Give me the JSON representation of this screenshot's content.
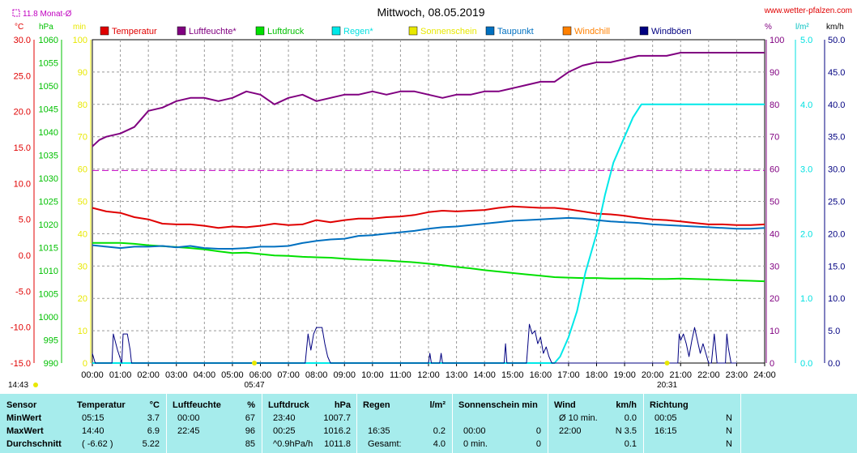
{
  "header": {
    "title": "Mittwoch, 08.05.2019",
    "site": "www.wetter-pfalzen.com",
    "month_avg_label": "11.8 Monat-Ø",
    "unit_c": "°C",
    "unit_hpa": "hPa",
    "unit_min": "min",
    "unit_pct": "%",
    "unit_lm2": "l/m²",
    "unit_kmh": "km/h",
    "sunrise": "05:47",
    "sunset": "20:31",
    "now": "14:43"
  },
  "colors": {
    "temperature": "#e00000",
    "humidity": "#800080",
    "pressure": "#00e000",
    "rain": "#00e8e8",
    "sunshine": "#e8e800",
    "dewpoint": "#0070c0",
    "windchill": "#ff8000",
    "gusts": "#000080",
    "table_bg": "#a6ecec"
  },
  "chart_data": {
    "type": "line",
    "title": "Mittwoch, 08.05.2019",
    "x_ticks": [
      "00:00",
      "01:00",
      "02:00",
      "03:00",
      "04:00",
      "05:00",
      "06:00",
      "07:00",
      "08:00",
      "09:00",
      "10:00",
      "11:00",
      "12:00",
      "13:00",
      "14:00",
      "15:00",
      "16:00",
      "17:00",
      "18:00",
      "19:00",
      "20:00",
      "21:00",
      "22:00",
      "23:00",
      "24:00"
    ],
    "axes": {
      "temperature_c": {
        "min": -15,
        "max": 30,
        "ticks": [
          "30.0",
          "25.0",
          "20.0",
          "15.0",
          "10.0",
          "5.0",
          "0.0",
          "-5.0",
          "-10.0",
          "-15.0"
        ]
      },
      "pressure_hpa": {
        "min": 990,
        "max": 1060,
        "ticks": [
          "1060",
          "1055",
          "1050",
          "1045",
          "1040",
          "1035",
          "1030",
          "1025",
          "1020",
          "1015",
          "1010",
          "1005",
          "1000",
          "995",
          "990"
        ]
      },
      "sunshine_min": {
        "min": 0,
        "max": 100,
        "ticks": [
          "100",
          "90",
          "80",
          "70",
          "60",
          "50",
          "40",
          "30",
          "20",
          "10",
          "0"
        ]
      },
      "humidity_pct": {
        "min": 0,
        "max": 100,
        "ticks": [
          "100",
          "90",
          "80",
          "70",
          "60",
          "50",
          "40",
          "30",
          "20",
          "10",
          "0"
        ]
      },
      "rain_lm2": {
        "min": 0,
        "max": 5,
        "ticks": [
          "5.0",
          "4.0",
          "3.0",
          "2.0",
          "1.0",
          "0.0"
        ]
      },
      "wind_kmh": {
        "min": 0,
        "max": 50,
        "ticks": [
          "50.0",
          "45.0",
          "40.0",
          "35.0",
          "30.0",
          "25.0",
          "20.0",
          "15.0",
          "10.0",
          "5.0",
          "0.0"
        ]
      }
    },
    "month_avg_temperature": 11.8,
    "legend": [
      "Temperatur",
      "Luftfeuchte*",
      "Luftdruck",
      "Regen*",
      "Sonnenschein",
      "Taupunkt",
      "Windchill",
      "Windböen"
    ],
    "series": [
      {
        "name": "Temperatur",
        "axis": "temperature_c",
        "x": [
          0,
          0.5,
          1,
          1.5,
          2,
          2.5,
          3,
          3.5,
          4,
          4.5,
          5,
          5.5,
          6,
          6.5,
          7,
          7.5,
          8,
          8.5,
          9,
          9.5,
          10,
          10.5,
          11,
          11.5,
          12,
          12.5,
          13,
          13.5,
          14,
          14.5,
          15,
          15.5,
          16,
          16.5,
          17,
          17.5,
          18,
          18.5,
          19,
          19.5,
          20,
          20.5,
          21,
          21.5,
          22,
          22.5,
          23,
          23.5,
          24
        ],
        "y": [
          6.6,
          6.1,
          5.9,
          5.3,
          5.0,
          4.4,
          4.3,
          4.3,
          4.1,
          3.8,
          4.0,
          3.9,
          4.1,
          4.4,
          4.2,
          4.3,
          4.9,
          4.6,
          4.9,
          5.1,
          5.1,
          5.3,
          5.4,
          5.6,
          6.0,
          6.2,
          6.1,
          6.2,
          6.3,
          6.6,
          6.8,
          6.7,
          6.6,
          6.6,
          6.4,
          6.1,
          5.8,
          5.7,
          5.5,
          5.2,
          5.0,
          4.9,
          4.7,
          4.5,
          4.3,
          4.3,
          4.2,
          4.2,
          4.3
        ]
      },
      {
        "name": "Luftfeuchte*",
        "axis": "humidity_pct",
        "x": [
          0,
          0.25,
          0.5,
          1,
          1.5,
          2,
          2.5,
          3,
          3.5,
          4,
          4.5,
          5,
          5.25,
          5.5,
          6,
          6.5,
          7,
          7.5,
          8,
          8.5,
          9,
          9.5,
          10,
          10.5,
          11,
          11.5,
          12,
          12.5,
          13,
          13.5,
          14,
          14.5,
          15,
          15.5,
          16,
          16.5,
          17,
          17.5,
          18,
          18.5,
          19,
          19.5,
          20,
          20.5,
          21,
          21.5,
          22,
          22.75,
          23,
          23.5,
          24
        ],
        "y": [
          67,
          69,
          70,
          71,
          73,
          78,
          79,
          81,
          82,
          82,
          81,
          82,
          83,
          84,
          83,
          80,
          82,
          83,
          81,
          82,
          83,
          83,
          84,
          83,
          84,
          84,
          83,
          82,
          83,
          83,
          84,
          84,
          85,
          86,
          87,
          87,
          90,
          92,
          93,
          93,
          94,
          95,
          95,
          95,
          96,
          96,
          96,
          96,
          96,
          96,
          96
        ]
      },
      {
        "name": "Luftdruck",
        "axis": "pressure_hpa",
        "x": [
          0,
          0.5,
          1,
          1.5,
          2,
          2.5,
          3,
          3.5,
          4,
          4.5,
          5,
          5.5,
          6,
          6.5,
          7,
          7.5,
          8,
          8.5,
          9,
          9.5,
          10,
          10.5,
          11,
          11.5,
          12,
          12.5,
          13,
          13.5,
          14,
          14.5,
          15,
          15.5,
          16,
          16.5,
          17,
          17.5,
          18,
          18.5,
          19,
          19.5,
          20,
          20.5,
          21,
          21.5,
          22,
          22.5,
          23,
          23.5,
          24
        ],
        "y": [
          1016.0,
          1016.0,
          1016.0,
          1015.8,
          1015.5,
          1015.3,
          1015.1,
          1014.9,
          1014.6,
          1014.2,
          1013.8,
          1013.9,
          1013.6,
          1013.3,
          1013.2,
          1013.0,
          1012.9,
          1012.8,
          1012.6,
          1012.4,
          1012.3,
          1012.2,
          1012.0,
          1011.8,
          1011.5,
          1011.2,
          1010.8,
          1010.5,
          1010.1,
          1009.8,
          1009.5,
          1009.2,
          1008.9,
          1008.6,
          1008.5,
          1008.4,
          1008.4,
          1008.3,
          1008.3,
          1008.3,
          1008.2,
          1008.2,
          1008.3,
          1008.2,
          1008.1,
          1008.0,
          1007.9,
          1007.8,
          1007.7
        ]
      },
      {
        "name": "Regen*",
        "axis": "rain_lm2",
        "x": [
          0,
          16.5,
          16.7,
          17.0,
          17.3,
          17.6,
          18.0,
          18.3,
          18.6,
          19.0,
          19.3,
          19.6,
          20.0,
          20.3,
          20.6,
          21.0,
          21.5,
          22.0,
          23.0,
          24.0
        ],
        "y": [
          0,
          0,
          0.1,
          0.4,
          0.8,
          1.4,
          2.0,
          2.6,
          3.1,
          3.5,
          3.8,
          4.0,
          4.0,
          4.0,
          4.0,
          4.0,
          4.0,
          4.0,
          4.0,
          4.0
        ]
      },
      {
        "name": "Taupunkt",
        "axis": "temperature_c",
        "x": [
          0,
          0.5,
          1,
          1.5,
          2,
          2.5,
          3,
          3.5,
          4,
          4.5,
          5,
          5.5,
          6,
          6.5,
          7,
          7.5,
          8,
          8.5,
          9,
          9.5,
          10,
          10.5,
          11,
          11.5,
          12,
          12.5,
          13,
          13.5,
          14,
          14.5,
          15,
          15.5,
          16,
          16.5,
          17,
          17.5,
          18,
          18.5,
          19,
          19.5,
          20,
          20.5,
          21,
          21.5,
          22,
          22.5,
          23,
          23.5,
          24
        ],
        "y": [
          1.4,
          1.2,
          1.0,
          1.2,
          1.2,
          1.3,
          1.1,
          1.3,
          1.0,
          0.9,
          0.9,
          1.0,
          1.2,
          1.2,
          1.3,
          1.7,
          2.0,
          2.2,
          2.3,
          2.7,
          2.8,
          3.0,
          3.2,
          3.4,
          3.7,
          3.9,
          4.0,
          4.2,
          4.4,
          4.6,
          4.8,
          4.9,
          5.0,
          5.1,
          5.2,
          5.1,
          4.9,
          4.7,
          4.6,
          4.5,
          4.3,
          4.2,
          4.1,
          4.0,
          3.9,
          3.8,
          3.7,
          3.7,
          3.8
        ]
      },
      {
        "name": "Windböen",
        "axis": "wind_kmh",
        "x": [
          0,
          0.1,
          0.2,
          0.7,
          0.75,
          0.9,
          1.05,
          1.1,
          1.25,
          1.35,
          1.4,
          1.5,
          7.6,
          7.7,
          7.8,
          7.9,
          8.0,
          8.1,
          8.2,
          8.3,
          8.4,
          8.5,
          12.0,
          12.05,
          12.1,
          12.4,
          12.45,
          12.5,
          14.7,
          14.75,
          14.8,
          15.5,
          15.55,
          15.6,
          15.7,
          15.8,
          15.9,
          16.0,
          16.1,
          16.2,
          16.3,
          16.4,
          20.9,
          20.95,
          21.0,
          21.1,
          21.2,
          21.3,
          21.4,
          21.5,
          21.6,
          21.7,
          21.8,
          21.9,
          22.0,
          22.1,
          22.2,
          22.3,
          22.6,
          22.65,
          22.7,
          22.8,
          22.9,
          23.0
        ],
        "y": [
          1.5,
          0,
          0,
          0,
          4.5,
          2.0,
          0,
          4.5,
          4.5,
          2.0,
          0,
          0,
          0,
          4.5,
          2.0,
          4.5,
          5.5,
          5.5,
          5.5,
          3.0,
          1.0,
          0,
          0,
          1.5,
          0,
          0,
          1.5,
          0,
          0,
          3.0,
          0,
          0,
          3.0,
          6.0,
          4.5,
          5.0,
          3.0,
          4.0,
          1.5,
          2.5,
          1.0,
          0,
          0,
          4.5,
          3.5,
          4.5,
          3.0,
          1.0,
          3.5,
          5.5,
          3.5,
          1.5,
          3.0,
          1.5,
          0,
          0,
          4.5,
          0,
          0,
          4.5,
          2.5,
          0,
          0,
          0
        ]
      }
    ]
  },
  "table": {
    "headers": [
      {
        "label": "Sensor"
      },
      {
        "label": "Temperatur",
        "unit": "°C"
      },
      {
        "label": "Luftfeuchte",
        "unit": "%"
      },
      {
        "label": "Luftdruck",
        "unit": "hPa"
      },
      {
        "label": "Regen",
        "unit": "l/m²"
      },
      {
        "label": "Sonnenschein min"
      },
      {
        "label": "Wind",
        "unit": "km/h"
      },
      {
        "label": "Richtung"
      }
    ],
    "rows": [
      {
        "label": "MinWert",
        "temp": [
          "05:15",
          "3.7"
        ],
        "hum": [
          "00:00",
          "67"
        ],
        "pres": [
          "23:40",
          "1007.7"
        ],
        "rain": [
          "",
          ""
        ],
        "sun": [
          "",
          ""
        ],
        "wind": [
          "Ø 10 min.",
          "0.0"
        ],
        "dir": [
          "00:05",
          "N"
        ]
      },
      {
        "label": "MaxWert",
        "temp": [
          "14:40",
          "6.9"
        ],
        "hum": [
          "22:45",
          "96"
        ],
        "pres": [
          "00:25",
          "1016.2"
        ],
        "rain": [
          "16:35",
          "0.2"
        ],
        "sun": [
          "00:00",
          "0"
        ],
        "wind": [
          "22:00",
          "N 3.5"
        ],
        "dir": [
          "16:15",
          "N"
        ]
      },
      {
        "label": "Durchschnitt",
        "temp": [
          "( -6.62 )",
          "5.22"
        ],
        "hum": [
          "",
          "85"
        ],
        "pres": [
          "^0.9hPa/h",
          "1011.8"
        ],
        "rain": [
          "Gesamt:",
          "4.0"
        ],
        "sun": [
          "0 min.",
          "0"
        ],
        "wind": [
          "",
          "0.1"
        ],
        "dir": [
          "",
          "N"
        ]
      }
    ]
  }
}
